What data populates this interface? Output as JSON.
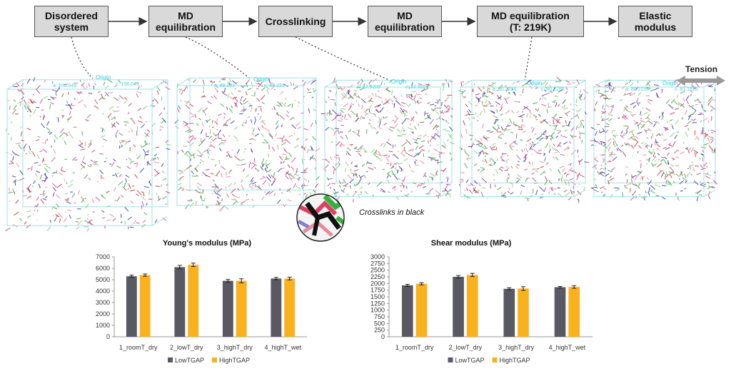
{
  "workflow": {
    "steps": [
      "Disordered\nsystem",
      "MD\nequilibration",
      "Crosslinking",
      "MD\nequilibration",
      "MD equilibration\n(T: 219K)",
      "Elastic\nmodulus"
    ]
  },
  "snapshots": [
    {
      "origin": "Origin",
      "a": "a: 108.049",
      "c": "c: 108.049"
    },
    {
      "origin": "Origin",
      "a": "a: 88.221",
      "c": "c: 88.221"
    },
    {
      "origin": "Origin",
      "a": "a: 82.9209",
      "c": "c: 82.9209"
    },
    {
      "origin": "Origin",
      "a": "a: 80.2258",
      "c": "c: 80.2258"
    },
    {
      "origin": "Origin",
      "a": "a: 80.2258",
      "c": "c: 81.1828"
    }
  ],
  "tension_label": "Tension",
  "inset_caption": "Crosslinks in black",
  "colors": {
    "low": "#595963",
    "high": "#f9b21e",
    "cube_edge": "#9ee0e8",
    "red": "#c8283c",
    "green": "#33a23a",
    "blue": "#2a2fa8",
    "magenta": "#c04090"
  },
  "chart_data": [
    {
      "type": "bar",
      "title": "Young's modulus (MPa)",
      "categories": [
        "1_roomT_dry",
        "2_lowT_dry",
        "3_highT_dry",
        "4_highT_wet"
      ],
      "series": [
        {
          "name": "LowTGAP",
          "values": [
            5300,
            6100,
            4900,
            5100
          ],
          "errors": [
            100,
            150,
            120,
            100
          ]
        },
        {
          "name": "HighTGAP",
          "values": [
            5400,
            6300,
            4900,
            5100
          ],
          "errors": [
            100,
            150,
            180,
            120
          ]
        }
      ],
      "ylim": [
        0,
        7000
      ],
      "yticks": [
        0,
        1000,
        2000,
        3000,
        4000,
        5000,
        6000,
        7000
      ],
      "legend": "bottom"
    },
    {
      "type": "bar",
      "title": "Shear modulus (MPa)",
      "categories": [
        "1_roomT_dry",
        "2_lowT_dry",
        "3_highT_dry",
        "4_highT_wet"
      ],
      "series": [
        {
          "name": "LowTGAP",
          "values": [
            1930,
            2250,
            1800,
            1860
          ],
          "errors": [
            40,
            50,
            40,
            30
          ]
        },
        {
          "name": "HighTGAP",
          "values": [
            1990,
            2320,
            1810,
            1870
          ],
          "errors": [
            40,
            60,
            70,
            50
          ]
        }
      ],
      "ylim": [
        0,
        3000
      ],
      "yticks": [
        0,
        250,
        500,
        750,
        1000,
        1250,
        1500,
        1750,
        2000,
        2250,
        2500,
        2750,
        3000
      ],
      "legend": "bottom"
    }
  ]
}
